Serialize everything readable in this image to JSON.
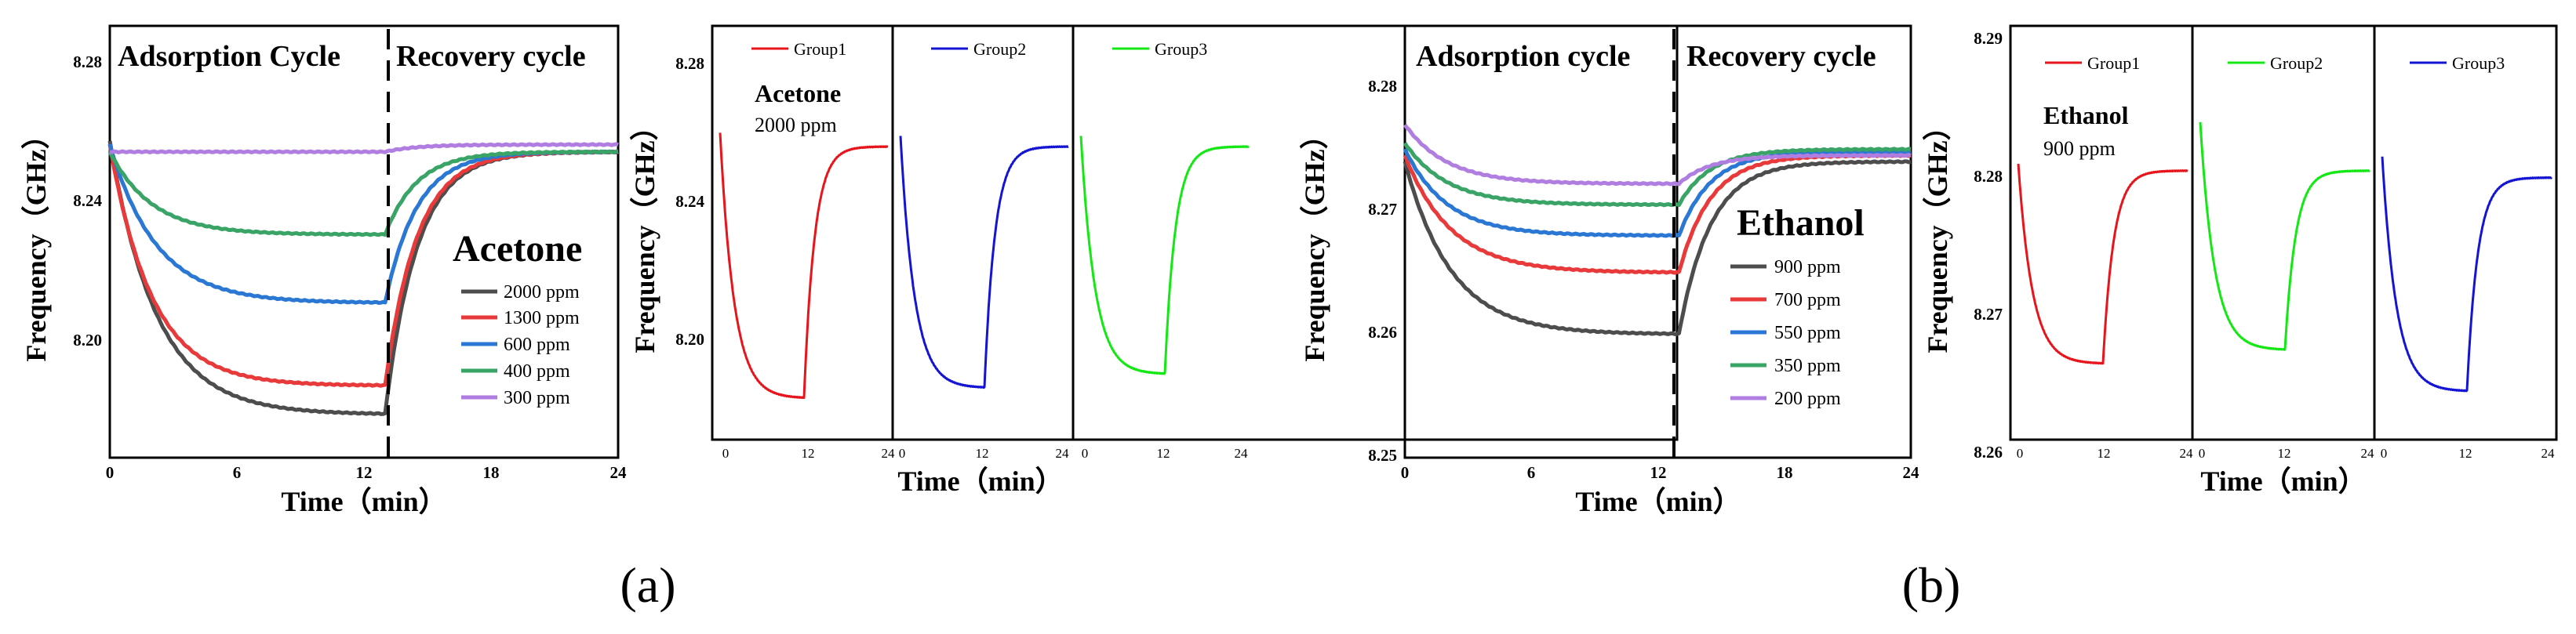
{
  "chart_data": [
    {
      "id": "a-main",
      "type": "line",
      "title": "",
      "xlabel": "Time（min）",
      "ylabel": "Frequency（GHz）",
      "xlim": [
        0,
        24
      ],
      "ylim": [
        8.17,
        8.29
      ],
      "xticks": [
        0,
        6,
        12,
        18,
        24
      ],
      "xtick_labels": [
        "0",
        "6",
        "12",
        "18",
        "24"
      ],
      "yticks": [
        8.2,
        8.24,
        8.28
      ],
      "ytick_labels": [
        "8.20",
        "8.24",
        "8.28"
      ],
      "divider_x": 13,
      "divider_style": "dashed",
      "region_labels": [
        "Adsorption Cycle",
        "Recovery cycle"
      ],
      "gas_label": "Acetone",
      "legend_position": "right",
      "series": [
        {
          "name": "2000 ppm",
          "color": "#4d4d4d",
          "start": 8.258,
          "min": 8.182,
          "end": 8.255,
          "tau": 2.2
        },
        {
          "name": "1300 ppm",
          "color": "#e83a3a",
          "start": 8.257,
          "min": 8.19,
          "end": 8.255,
          "tau": 2.0
        },
        {
          "name": "600 ppm",
          "color": "#2b78d4",
          "start": 8.257,
          "min": 8.213,
          "end": 8.255,
          "tau": 2.2
        },
        {
          "name": "400 ppm",
          "color": "#3aa366",
          "start": 8.255,
          "min": 8.232,
          "end": 8.255,
          "tau": 2.0
        },
        {
          "name": "300 ppm",
          "color": "#b07ee0",
          "start": 8.255,
          "min": 8.255,
          "end": 8.257,
          "tau": 1.0
        }
      ]
    },
    {
      "id": "a-groups",
      "type": "line",
      "ylabel": "Frequency（GHz）",
      "xlabel": "Time（min）",
      "xlim": [
        0,
        24
      ],
      "ylim": [
        8.17,
        8.29
      ],
      "yticks": [
        8.2,
        8.24,
        8.28
      ],
      "ytick_labels": [
        "8.20",
        "8.24",
        "8.28"
      ],
      "xticks": [
        0,
        12,
        24
      ],
      "xtick_labels": [
        "0",
        "12",
        "24"
      ],
      "gas_label": "Acetone",
      "concentration": "2000 ppm",
      "series": [
        {
          "name": "Group1",
          "color": "#e8141c",
          "start": 8.259,
          "min": 8.182,
          "end": 8.255,
          "tau": 2.0
        },
        {
          "name": "Group2",
          "color": "#1414d4",
          "start": 8.258,
          "min": 8.185,
          "end": 8.255,
          "tau": 2.0
        },
        {
          "name": "Group3",
          "color": "#14e814",
          "start": 8.258,
          "min": 8.189,
          "end": 8.255,
          "tau": 2.0
        }
      ]
    },
    {
      "id": "b-main",
      "type": "line",
      "title": "",
      "xlabel": "Time（min）",
      "ylabel": "Frequency（GHz）",
      "xlim": [
        0,
        24
      ],
      "ylim": [
        8.25,
        8.285
      ],
      "xticks": [
        0,
        6,
        12,
        18,
        24
      ],
      "xtick_labels": [
        "0",
        "6",
        "12",
        "18",
        "24"
      ],
      "yticks": [
        8.25,
        8.26,
        8.27,
        8.28
      ],
      "ytick_labels": [
        "8.25",
        "8.26",
        "8.27",
        "8.28"
      ],
      "divider_x": 13,
      "divider_style": "dashed",
      "region_labels": [
        "Adsorption cycle",
        "Recovery cycle"
      ],
      "gas_label": "Ethanol",
      "legend_position": "right",
      "series": [
        {
          "name": "900 ppm",
          "color": "#4d4d4d",
          "start": 8.274,
          "min": 8.26,
          "end": 8.274,
          "tau": 2.2
        },
        {
          "name": "700 ppm",
          "color": "#e83a3a",
          "start": 8.2745,
          "min": 8.265,
          "end": 8.2745,
          "tau": 2.2
        },
        {
          "name": "550 ppm",
          "color": "#2b78d4",
          "start": 8.275,
          "min": 8.268,
          "end": 8.2748,
          "tau": 2.0
        },
        {
          "name": "350 ppm",
          "color": "#3aa366",
          "start": 8.2755,
          "min": 8.2705,
          "end": 8.275,
          "tau": 2.0
        },
        {
          "name": "200 ppm",
          "color": "#b07ee0",
          "start": 8.277,
          "min": 8.2722,
          "end": 8.2745,
          "tau": 2.0
        }
      ]
    },
    {
      "id": "b-groups",
      "type": "line",
      "ylabel": "Frequency（GHz）",
      "xlabel": "Time（min）",
      "xlim": [
        0,
        24
      ],
      "ylim": [
        8.26,
        8.29
      ],
      "yticks": [
        8.26,
        8.27,
        8.28,
        8.29
      ],
      "ytick_labels": [
        "8.26",
        "8.27",
        "8.28",
        "8.29"
      ],
      "xticks": [
        0,
        12,
        24
      ],
      "xtick_labels": [
        "0",
        "12",
        "24"
      ],
      "gas_label": "Ethanol",
      "concentration": "900 ppm",
      "series": [
        {
          "name": "Group1",
          "color": "#e8141c",
          "start": 8.28,
          "min": 8.2655,
          "end": 8.2795,
          "tau": 2.0
        },
        {
          "name": "Group2",
          "color": "#14e814",
          "start": 8.283,
          "min": 8.2665,
          "end": 8.2795,
          "tau": 2.0
        },
        {
          "name": "Group3",
          "color": "#1414d4",
          "start": 8.2805,
          "min": 8.2635,
          "end": 8.279,
          "tau": 2.0
        }
      ]
    }
  ],
  "panel_labels": [
    "(a)",
    "(b)"
  ]
}
